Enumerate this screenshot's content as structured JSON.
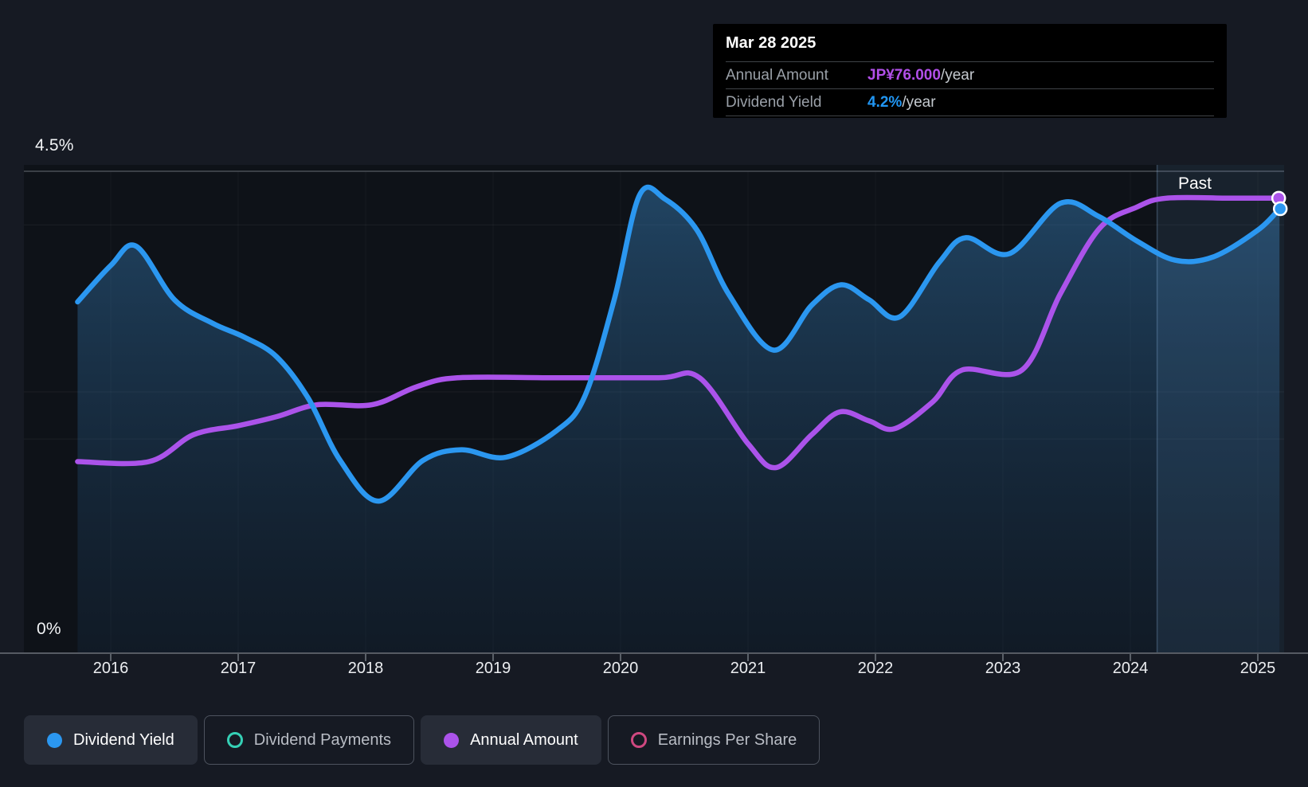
{
  "tooltip": {
    "date": "Mar 28 2025",
    "rows": [
      {
        "label": "Annual Amount",
        "value": "JP¥76.000",
        "suffix": "/year",
        "value_color": "#b14fe8"
      },
      {
        "label": "Dividend Yield",
        "value": "4.2%",
        "suffix": "/year",
        "value_color": "#2196f3"
      }
    ]
  },
  "past_label": "Past",
  "y_axis": {
    "max_label": "4.5%",
    "min_label": "0%"
  },
  "legend": [
    {
      "label": "Dividend Yield",
      "color": "#2b97f0",
      "marker": "filled",
      "active": true
    },
    {
      "label": "Dividend Payments",
      "color": "#35d0b5",
      "marker": "ring",
      "active": false
    },
    {
      "label": "Annual Amount",
      "color": "#ab53ea",
      "marker": "filled",
      "active": true
    },
    {
      "label": "Earnings Per Share",
      "color": "#cf4880",
      "marker": "ring",
      "active": false
    }
  ],
  "chart_data": {
    "type": "line",
    "x_axis": {
      "tick_years": [
        2016,
        2017,
        2018,
        2019,
        2020,
        2021,
        2022,
        2023,
        2024,
        2025
      ],
      "range": [
        2015.74,
        2025.21
      ]
    },
    "y_axis": {
      "label_max": "4.5%",
      "label_min": "0%",
      "range_pct": [
        0,
        4.5
      ],
      "gridlines_pct": [
        4.5,
        4.0,
        2.44,
        2.0
      ]
    },
    "past_divider_year": 2024.21,
    "colors": {
      "yield_line": "#2b97f0",
      "amount_line": "#ab53ea",
      "area_top": "rgba(56,130,190,0.45)",
      "area_bottom": "rgba(30,70,110,0.16)",
      "past_band": "rgba(120,178,235,0.10)",
      "past_divider": "rgba(150,192,235,0.28)",
      "plot_bg": "#0e1218",
      "axis_line": "#565b63",
      "top_gridline": "#4a4f57"
    },
    "series": [
      {
        "name": "Dividend Yield",
        "unit": "%",
        "area": true,
        "end_value": "4.2%",
        "points": [
          [
            2015.74,
            3.28
          ],
          [
            2016.0,
            3.62
          ],
          [
            2016.2,
            3.8
          ],
          [
            2016.5,
            3.3
          ],
          [
            2016.8,
            3.08
          ],
          [
            2017.05,
            2.95
          ],
          [
            2017.3,
            2.77
          ],
          [
            2017.55,
            2.38
          ],
          [
            2017.8,
            1.8
          ],
          [
            2018.1,
            1.42
          ],
          [
            2018.45,
            1.8
          ],
          [
            2018.75,
            1.9
          ],
          [
            2019.1,
            1.83
          ],
          [
            2019.5,
            2.08
          ],
          [
            2019.72,
            2.4
          ],
          [
            2019.95,
            3.3
          ],
          [
            2020.15,
            4.28
          ],
          [
            2020.35,
            4.24
          ],
          [
            2020.6,
            3.95
          ],
          [
            2020.85,
            3.35
          ],
          [
            2021.2,
            2.83
          ],
          [
            2021.5,
            3.25
          ],
          [
            2021.73,
            3.44
          ],
          [
            2021.95,
            3.3
          ],
          [
            2022.19,
            3.14
          ],
          [
            2022.5,
            3.65
          ],
          [
            2022.71,
            3.88
          ],
          [
            2023.05,
            3.73
          ],
          [
            2023.45,
            4.2
          ],
          [
            2023.75,
            4.08
          ],
          [
            2024.05,
            3.85
          ],
          [
            2024.35,
            3.67
          ],
          [
            2024.65,
            3.7
          ],
          [
            2025.0,
            3.95
          ],
          [
            2025.17,
            4.15
          ]
        ]
      },
      {
        "name": "Annual Amount",
        "unit": "JP¥/year",
        "area": false,
        "end_value": "JP¥76.000/year",
        "plot_scale_pct_per_unit": 0.0559,
        "points": [
          [
            2015.74,
            32
          ],
          [
            2016.3,
            32
          ],
          [
            2016.65,
            36.5
          ],
          [
            2017.0,
            38
          ],
          [
            2017.3,
            39.5
          ],
          [
            2017.62,
            41.5
          ],
          [
            2018.05,
            41.5
          ],
          [
            2018.4,
            44.5
          ],
          [
            2018.72,
            46
          ],
          [
            2019.5,
            46
          ],
          [
            2020.3,
            46
          ],
          [
            2020.62,
            46
          ],
          [
            2021.0,
            35
          ],
          [
            2021.22,
            31
          ],
          [
            2021.5,
            36.5
          ],
          [
            2021.72,
            40.3
          ],
          [
            2021.95,
            38.8
          ],
          [
            2022.15,
            37.5
          ],
          [
            2022.45,
            42
          ],
          [
            2022.68,
            47.3
          ],
          [
            2023.15,
            47.3
          ],
          [
            2023.45,
            60
          ],
          [
            2023.76,
            71
          ],
          [
            2024.05,
            74.5
          ],
          [
            2024.28,
            76
          ],
          [
            2024.8,
            76
          ],
          [
            2025.17,
            76
          ]
        ]
      }
    ]
  }
}
